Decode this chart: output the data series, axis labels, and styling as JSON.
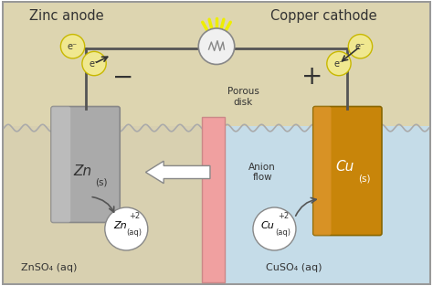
{
  "bg_top_color": "#ddd5b0",
  "bg_bottom_left_color": "#d8d0b0",
  "bg_bottom_right_color": "#c5dce8",
  "border_color": "#888888",
  "title_left": "Zinc anode",
  "title_right": "Copper cathode",
  "label_znso4": "ZnSO₄ (aq)",
  "label_cuso4": "CuSO₄ (aq)",
  "label_porous": "Porous\ndisk",
  "label_anion": "Anion\nflow",
  "zn_electrode_color": "#aaaaaa",
  "cu_electrode_color": "#c8850a",
  "porous_disk_color": "#f0a0a0",
  "wire_color": "#555555",
  "electron_circle_color": "#f0e890",
  "electron_circle_edge": "#c8b800",
  "ion_circle_color": "#ffffff",
  "ion_circle_edge": "#888888",
  "anion_arrow_color": "#ffffff",
  "anion_arrow_edge": "#888888",
  "bulb_color": "#f0f0f0",
  "wave_color": "#aaaaaa",
  "figsize": [
    4.74,
    3.13
  ],
  "dpi": 100
}
